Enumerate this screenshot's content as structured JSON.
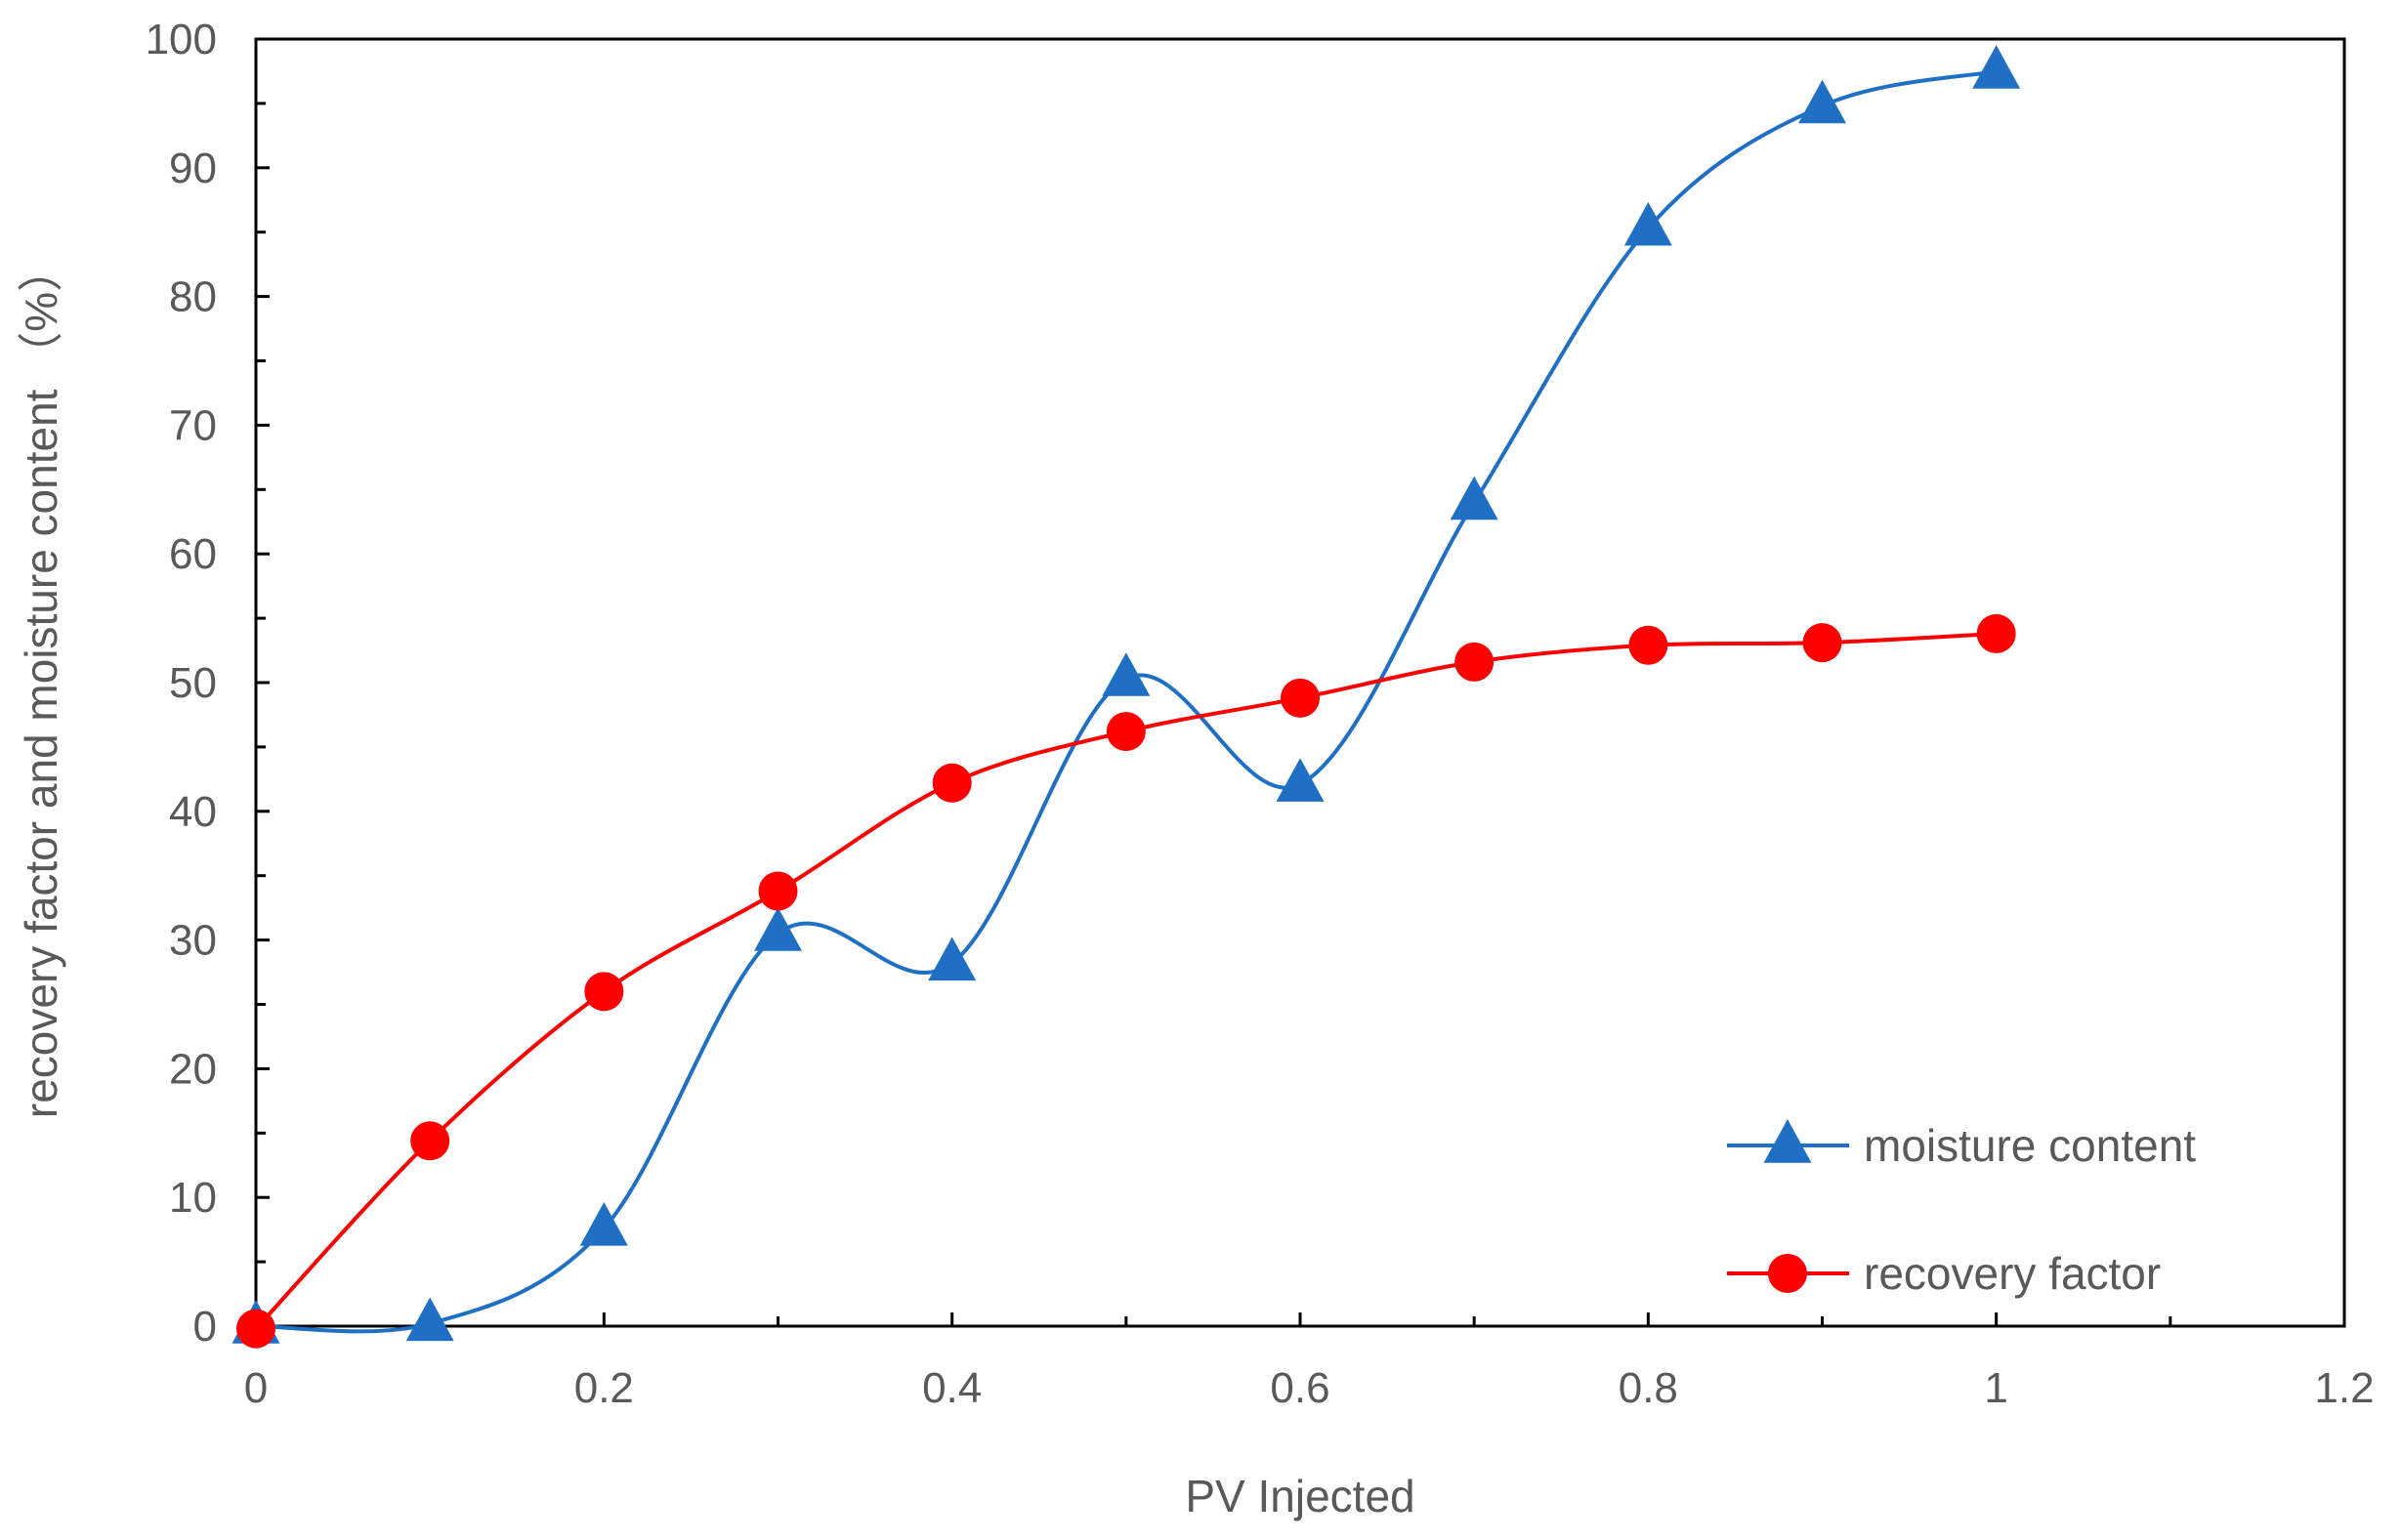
{
  "chart_data": {
    "type": "line",
    "title": "",
    "xlabel": "PV Injected",
    "ylabel": "recovery factor and moisture content （%）",
    "xlim": [
      0,
      1.2
    ],
    "ylim": [
      0,
      100
    ],
    "xticks": [
      0,
      0.2,
      0.4,
      0.6,
      0.8,
      1,
      1.2
    ],
    "xtick_labels": [
      "0",
      "0.2",
      "0.4",
      "0.6",
      "0.8",
      "1",
      "1.2"
    ],
    "yticks": [
      0,
      10,
      20,
      30,
      40,
      50,
      60,
      70,
      80,
      90,
      100
    ],
    "ytick_labels": [
      "0",
      "10",
      "20",
      "30",
      "40",
      "50",
      "60",
      "70",
      "80",
      "90",
      "100"
    ],
    "grid": false,
    "smooth": true,
    "legend_position": "bottom-right",
    "series": [
      {
        "name": "moisture content",
        "marker": "triangle",
        "color": "#1f6fc5",
        "x": [
          0,
          0.1,
          0.2,
          0.3,
          0.4,
          0.5,
          0.6,
          0.7,
          0.8,
          0.9,
          1.0
        ],
        "y": [
          0,
          0.2,
          7.6,
          30.5,
          28.2,
          50.3,
          42.1,
          64.0,
          85.3,
          94.8,
          97.5
        ]
      },
      {
        "name": "recovery factor",
        "marker": "circle",
        "color": "#ff0000",
        "x": [
          0,
          0.1,
          0.2,
          0.3,
          0.4,
          0.5,
          0.6,
          0.7,
          0.8,
          0.9,
          1.0
        ],
        "y": [
          -0.2,
          14.4,
          26.0,
          33.8,
          42.2,
          46.2,
          48.8,
          51.6,
          52.9,
          53.1,
          53.8
        ]
      }
    ]
  }
}
